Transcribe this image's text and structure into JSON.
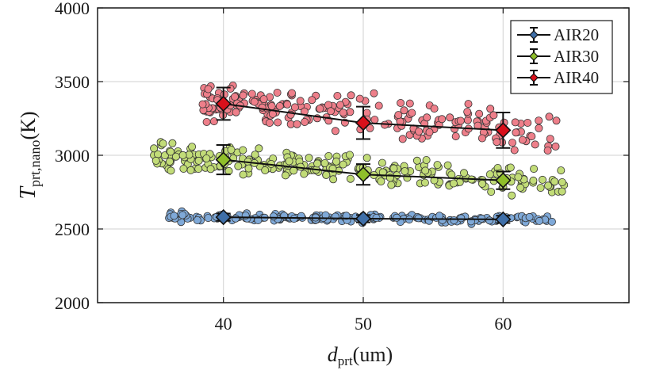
{
  "chart_data": {
    "type": "scatter",
    "xlabel": {
      "main": "d",
      "sub": "prt",
      "unit": "(um)"
    },
    "ylabel": {
      "main": "T",
      "sub": "prt,nano",
      "unit": "(K)"
    },
    "xlim": [
      31,
      69
    ],
    "ylim": [
      2000,
      4000
    ],
    "xticks": [
      40,
      50,
      60
    ],
    "yticks": [
      2000,
      2500,
      3000,
      3500,
      4000
    ],
    "grid": true,
    "legend_position": "top-right",
    "series": [
      {
        "name": "AIR20",
        "marker_color": "#3f6fa8",
        "scatter_color": "#7fa9d8",
        "means": [
          {
            "x": 40,
            "y": 2580,
            "err": 25
          },
          {
            "x": 50,
            "y": 2570,
            "err": 25
          },
          {
            "x": 60,
            "y": 2565,
            "err": 25
          }
        ],
        "scatter": {
          "xmin": 36,
          "xmax": 63.5,
          "ycenter": 2575,
          "yspread": 28,
          "n": 190,
          "seed": 11
        }
      },
      {
        "name": "AIR30",
        "marker_color": "#8fbf2a",
        "scatter_color": "#c2dc78",
        "means": [
          {
            "x": 40,
            "y": 2970,
            "err": 100
          },
          {
            "x": 50,
            "y": 2870,
            "err": 70
          },
          {
            "x": 60,
            "y": 2830,
            "err": 60
          }
        ],
        "scatter": {
          "xmin": 35,
          "xmax": 64.5,
          "ycenter": 2900,
          "yspread": 95,
          "n": 270,
          "seed": 23
        }
      },
      {
        "name": "AIR40",
        "marker_color": "#d9101b",
        "scatter_color": "#ee7f8a",
        "means": [
          {
            "x": 40,
            "y": 3350,
            "err": 110
          },
          {
            "x": 50,
            "y": 3220,
            "err": 110
          },
          {
            "x": 60,
            "y": 3170,
            "err": 120
          }
        ],
        "scatter": {
          "xmin": 38.5,
          "xmax": 64,
          "ycenter": 3250,
          "yspread": 130,
          "n": 230,
          "seed": 37
        }
      }
    ]
  }
}
